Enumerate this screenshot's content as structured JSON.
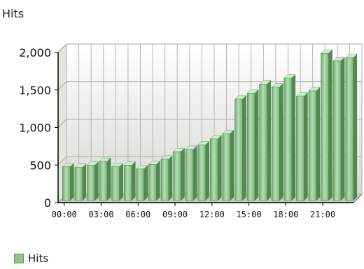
{
  "chart_data": {
    "type": "bar",
    "title": "Hits",
    "xlabel": "",
    "ylabel": "",
    "ylim": [
      0,
      2000
    ],
    "yticks": [
      "0",
      "500",
      "1,000",
      "1,500",
      "2,000"
    ],
    "categories": [
      "00:00",
      "01:00",
      "02:00",
      "03:00",
      "04:00",
      "05:00",
      "06:00",
      "07:00",
      "08:00",
      "09:00",
      "10:00",
      "11:00",
      "12:00",
      "13:00",
      "14:00",
      "15:00",
      "16:00",
      "17:00",
      "18:00",
      "19:00",
      "20:00",
      "21:00",
      "22:00",
      "23:00"
    ],
    "x_tick_labels": [
      "00:00",
      "03:00",
      "06:00",
      "09:00",
      "12:00",
      "15:00",
      "18:00",
      "21:00"
    ],
    "series": [
      {
        "name": "Hits",
        "values": [
          450,
          440,
          470,
          520,
          450,
          470,
          420,
          480,
          550,
          650,
          680,
          740,
          820,
          890,
          1350,
          1430,
          1550,
          1510,
          1630,
          1390,
          1460,
          1960,
          1860,
          1900
        ]
      }
    ],
    "grid": true,
    "legend": "bottom-left",
    "bar_color": "#8fc48f"
  }
}
